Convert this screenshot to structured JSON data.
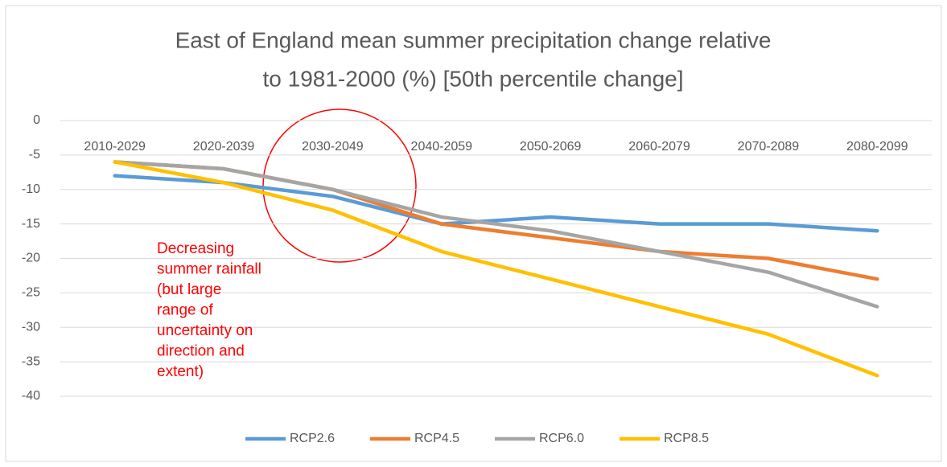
{
  "chart_data": {
    "type": "line",
    "title": [
      "East of England mean summer precipitation change relative",
      "to 1981-2000 (%) [50th percentile change]"
    ],
    "categories": [
      "2010-2029",
      "2020-2039",
      "2030-2049",
      "2040-2059",
      "2050-2069",
      "2060-2079",
      "2070-2089",
      "2080-2099"
    ],
    "series": [
      {
        "name": "RCP2.6",
        "color": "#5b9bd5",
        "values": [
          -8,
          -9,
          -11,
          -15,
          -14,
          -15,
          -15,
          -16
        ]
      },
      {
        "name": "RCP4.5",
        "color": "#ed7d31",
        "values": [
          -6,
          -7,
          -10,
          -15,
          -17,
          -19,
          -20,
          -23
        ]
      },
      {
        "name": "RCP6.0",
        "color": "#a5a5a5",
        "values": [
          -6,
          -7,
          -10,
          -14,
          -16,
          -19,
          -22,
          -27
        ]
      },
      {
        "name": "RCP8.5",
        "color": "#ffc000",
        "values": [
          -6,
          -9,
          -13,
          -19,
          -23,
          -27,
          -31,
          -37
        ]
      }
    ],
    "ylim": [
      -40,
      0
    ],
    "yticks": [
      0,
      -5,
      -10,
      -15,
      -20,
      -25,
      -30,
      -35,
      -40
    ],
    "grid": true,
    "legend": "bottom",
    "annotation": [
      "Decreasing",
      "summer rainfall",
      "(but large",
      "range of",
      "uncertainty on",
      "direction and",
      "extent)"
    ],
    "annotation_color": "#ff0000"
  }
}
